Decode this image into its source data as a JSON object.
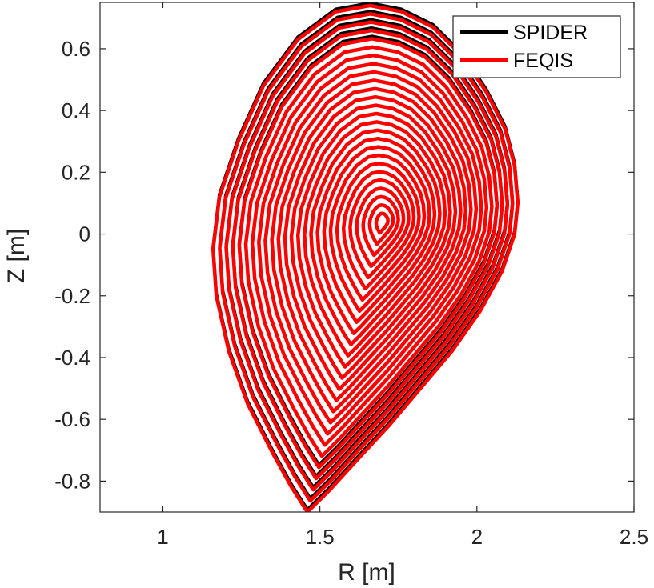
{
  "chart_data": {
    "type": "line",
    "title": "",
    "xlabel": "R [m]",
    "ylabel": "Z [m]",
    "xlim": [
      0.8,
      2.5
    ],
    "ylim": [
      -0.9,
      0.75
    ],
    "xticks": [
      1,
      1.5,
      2,
      2.5
    ],
    "xtick_labels": [
      "1",
      "1.5",
      "2",
      "2.5"
    ],
    "yticks": [
      0.6,
      0.4,
      0.2,
      0,
      -0.2,
      -0.4,
      -0.6,
      -0.8
    ],
    "ytick_labels": [
      "0.6",
      "0.4",
      "0.2",
      "0",
      "-0.2",
      "-0.4",
      "-0.6",
      "-0.8"
    ],
    "grid": false,
    "legend_position": "top-right",
    "series": [
      {
        "name": "SPIDER",
        "color": "#000000"
      },
      {
        "name": "FEQIS",
        "color": "#ff0000"
      }
    ],
    "magnetic_axis": {
      "R": 1.7,
      "Z": 0.04
    },
    "boundary": {
      "R": [
        1.46,
        1.53,
        1.62,
        1.72,
        1.82,
        1.92,
        2.01,
        2.08,
        2.12,
        2.13,
        2.12,
        2.09,
        2.03,
        1.95,
        1.86,
        1.76,
        1.66,
        1.55,
        1.43,
        1.32,
        1.24,
        1.18,
        1.16,
        1.17,
        1.21,
        1.27,
        1.35,
        1.41,
        1.46
      ],
      "Z": [
        -0.9,
        -0.83,
        -0.73,
        -0.62,
        -0.5,
        -0.38,
        -0.25,
        -0.12,
        0.0,
        0.1,
        0.22,
        0.34,
        0.46,
        0.58,
        0.67,
        0.72,
        0.74,
        0.72,
        0.63,
        0.48,
        0.3,
        0.12,
        -0.05,
        -0.2,
        -0.38,
        -0.55,
        -0.71,
        -0.82,
        -0.9
      ]
    },
    "num_flux_surfaces": 26,
    "lower_surface_minima": [
      {
        "R": 1.45,
        "Z": -0.9,
        "spider_Z": -0.895
      },
      {
        "R": 1.48,
        "Z": -0.8,
        "spider_Z": -0.785
      },
      {
        "R": 1.5,
        "Z": -0.742,
        "spider_Z": -0.735
      },
      {
        "R": 1.52,
        "Z": -0.695,
        "spider_Z": -0.69
      }
    ]
  }
}
